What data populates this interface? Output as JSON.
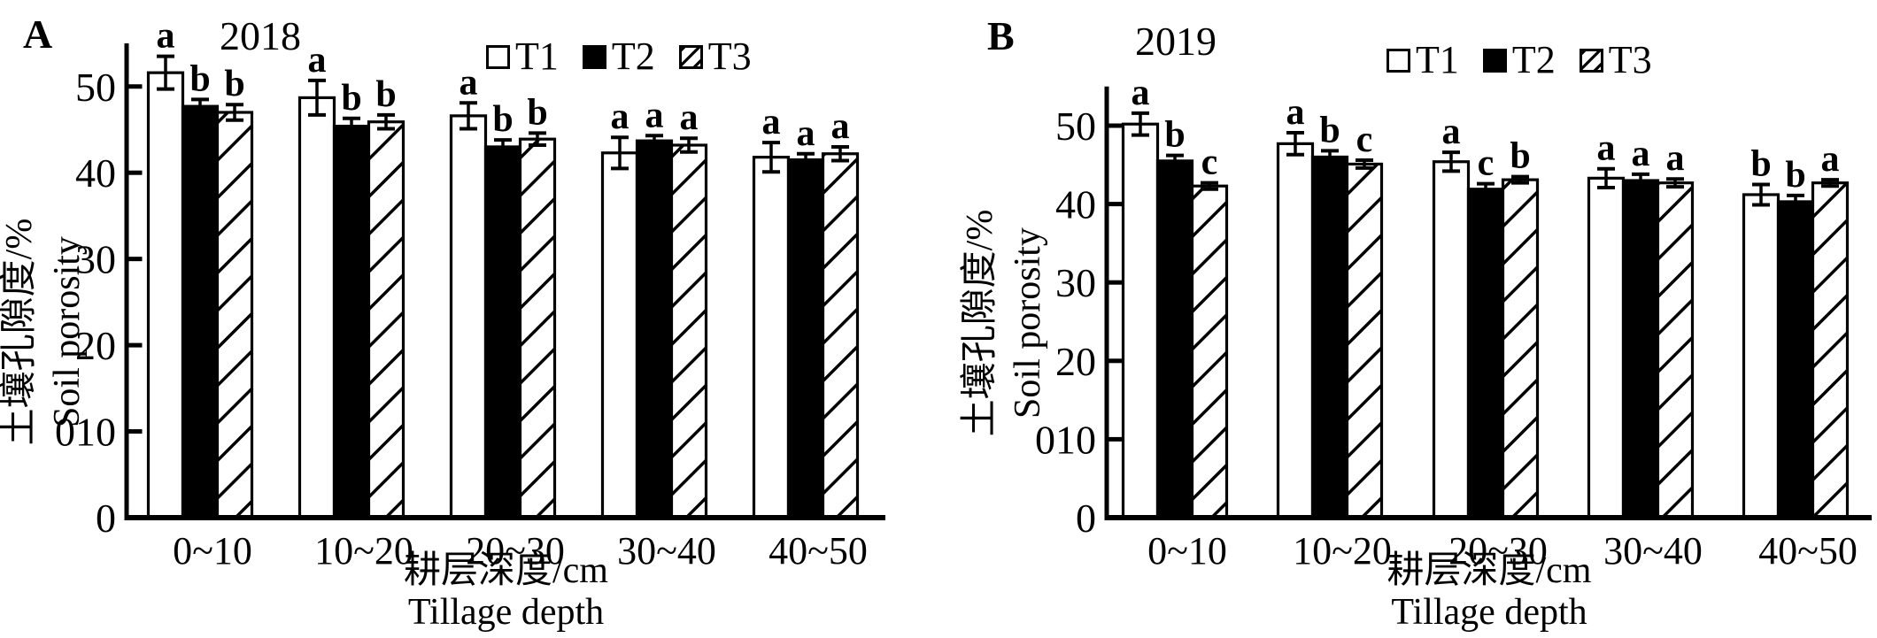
{
  "chart_data": [
    {
      "type": "bar",
      "panel_label": "A",
      "title": "2018",
      "categories": [
        "0~10",
        "10~20",
        "20~30",
        "30~40",
        "40~50"
      ],
      "xlabel_zh": "耕层深度/cm",
      "xlabel_en": "Tillage depth",
      "ylabel_zh": "土壤孔隙度/%",
      "ylabel_en": "Soil porosity",
      "ylim": [
        0,
        55
      ],
      "grid": false,
      "legend_position": "top-center",
      "yticks": [
        {
          "value": 0,
          "label": "0"
        },
        {
          "value": 10,
          "label": "010"
        },
        {
          "value": 20,
          "label": "20"
        },
        {
          "value": 30,
          "label": "30"
        },
        {
          "value": 40,
          "label": "40"
        },
        {
          "value": 50,
          "label": "50"
        }
      ],
      "series": [
        {
          "name": "T1",
          "fill": "open",
          "values": [
            51.6,
            48.7,
            46.6,
            42.3,
            41.8
          ],
          "errors": [
            1.9,
            2.0,
            1.5,
            1.8,
            1.7
          ],
          "sig_letters": [
            "a",
            "a",
            "a",
            "a",
            "a"
          ]
        },
        {
          "name": "T2",
          "fill": "solid-black",
          "values": [
            47.7,
            45.4,
            43.0,
            43.7,
            41.5
          ],
          "errors": [
            0.8,
            0.9,
            0.8,
            0.6,
            0.7
          ],
          "sig_letters": [
            "b",
            "b",
            "b",
            "a",
            "a"
          ]
        },
        {
          "name": "T3",
          "fill": "hatched",
          "values": [
            47.0,
            45.9,
            43.9,
            43.2,
            42.2
          ],
          "errors": [
            0.9,
            0.8,
            0.7,
            0.8,
            0.8
          ],
          "sig_letters": [
            "b",
            "b",
            "b",
            "a",
            "a"
          ]
        }
      ]
    },
    {
      "type": "bar",
      "panel_label": "B",
      "title": "2019",
      "categories": [
        "0~10",
        "10~20",
        "20~30",
        "30~40",
        "40~50"
      ],
      "xlabel_zh": "耕层深度/cm",
      "xlabel_en": "Tillage depth",
      "ylabel_zh": "土壤孔隙度/%",
      "ylabel_en": "Soil porosity",
      "ylim": [
        0,
        55
      ],
      "grid": false,
      "legend_position": "top-center",
      "yticks": [
        {
          "value": 0,
          "label": "0"
        },
        {
          "value": 10,
          "label": "010"
        },
        {
          "value": 20,
          "label": "20"
        },
        {
          "value": 30,
          "label": "30"
        },
        {
          "value": 40,
          "label": "40"
        },
        {
          "value": 50,
          "label": "50"
        }
      ],
      "series": [
        {
          "name": "T1",
          "fill": "open",
          "values": [
            50.2,
            47.7,
            45.4,
            43.3,
            41.2
          ],
          "errors": [
            1.4,
            1.4,
            1.2,
            1.2,
            1.3
          ],
          "sig_letters": [
            "a",
            "a",
            "a",
            "a",
            "b"
          ]
        },
        {
          "name": "T2",
          "fill": "solid-black",
          "values": [
            45.5,
            46.0,
            41.9,
            43.0,
            40.3
          ],
          "errors": [
            0.7,
            0.8,
            0.7,
            0.8,
            0.8
          ],
          "sig_letters": [
            "b",
            "b",
            "c",
            "a",
            "b"
          ]
        },
        {
          "name": "T3",
          "fill": "hatched",
          "values": [
            42.3,
            45.1,
            43.1,
            42.7,
            42.7
          ],
          "errors": [
            0.4,
            0.5,
            0.4,
            0.5,
            0.4
          ],
          "sig_letters": [
            "c",
            "c",
            "b",
            "a",
            "a"
          ]
        }
      ]
    }
  ]
}
